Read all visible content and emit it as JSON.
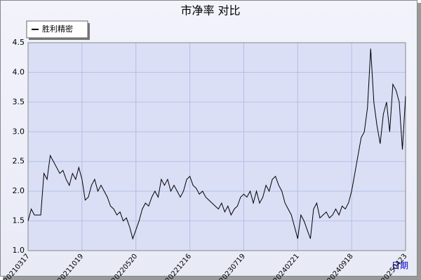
{
  "chart_data": {
    "type": "line",
    "title": "市净率 对比",
    "x_label": "日期",
    "categories": [
      "20210317",
      null,
      null,
      null,
      null,
      null,
      null,
      null,
      null,
      null,
      null,
      null,
      null,
      null,
      null,
      null,
      null,
      "20211019",
      null,
      null,
      null,
      null,
      null,
      null,
      null,
      null,
      null,
      null,
      null,
      null,
      null,
      null,
      null,
      null,
      "20220520",
      null,
      null,
      null,
      null,
      null,
      null,
      null,
      null,
      null,
      null,
      null,
      null,
      null,
      null,
      null,
      null,
      "20221216",
      null,
      null,
      null,
      null,
      null,
      null,
      null,
      null,
      null,
      null,
      null,
      null,
      null,
      null,
      null,
      null,
      "20230719",
      null,
      null,
      null,
      null,
      null,
      null,
      null,
      null,
      null,
      null,
      null,
      null,
      null,
      null,
      null,
      null,
      "20240221",
      null,
      null,
      null,
      null,
      null,
      null,
      null,
      null,
      null,
      null,
      null,
      null,
      null,
      null,
      null,
      null,
      "20240918",
      null,
      null,
      null,
      null,
      null,
      null,
      null,
      null,
      null,
      null,
      null,
      null,
      null,
      null,
      null,
      null,
      "20250423"
    ],
    "series": [
      {
        "name": "胜利精密",
        "color": "#000000",
        "values": [
          1.5,
          1.7,
          1.6,
          1.6,
          1.6,
          2.3,
          2.2,
          2.6,
          2.5,
          2.4,
          2.3,
          2.35,
          2.2,
          2.1,
          2.3,
          2.2,
          2.4,
          2.2,
          1.85,
          1.9,
          2.1,
          2.2,
          2.0,
          2.1,
          2.0,
          1.9,
          1.75,
          1.7,
          1.6,
          1.65,
          1.5,
          1.55,
          1.4,
          1.2,
          1.35,
          1.5,
          1.7,
          1.8,
          1.75,
          1.9,
          2.0,
          1.9,
          2.2,
          2.1,
          2.2,
          2.0,
          2.1,
          2.0,
          1.9,
          2.0,
          2.2,
          2.25,
          2.1,
          2.05,
          1.95,
          2.0,
          1.9,
          1.85,
          1.8,
          1.75,
          1.7,
          1.8,
          1.65,
          1.75,
          1.6,
          1.7,
          1.75,
          1.9,
          1.95,
          1.9,
          2.0,
          1.8,
          2.0,
          1.8,
          1.9,
          2.1,
          2.0,
          2.2,
          2.25,
          2.1,
          2.0,
          1.8,
          1.7,
          1.6,
          1.4,
          1.2,
          1.6,
          1.5,
          1.35,
          1.2,
          1.7,
          1.8,
          1.55,
          1.6,
          1.65,
          1.55,
          1.6,
          1.7,
          1.6,
          1.75,
          1.7,
          1.8,
          2.0,
          2.3,
          2.6,
          2.9,
          3.0,
          3.4,
          4.4,
          3.5,
          3.1,
          2.8,
          3.3,
          3.5,
          3.0,
          3.8,
          3.7,
          3.5,
          2.7,
          3.6
        ]
      }
    ],
    "ylim": [
      1.0,
      4.5
    ],
    "yticks": [
      {
        "value": 1.0,
        "label": "1.0"
      },
      1.5,
      {
        "value": 2.0,
        "label": "2.0"
      },
      2.5,
      {
        "value": 3.0,
        "label": "3.0"
      },
      3.5,
      {
        "value": 4.0,
        "label": "4.0"
      },
      4.5
    ],
    "grid": true
  }
}
